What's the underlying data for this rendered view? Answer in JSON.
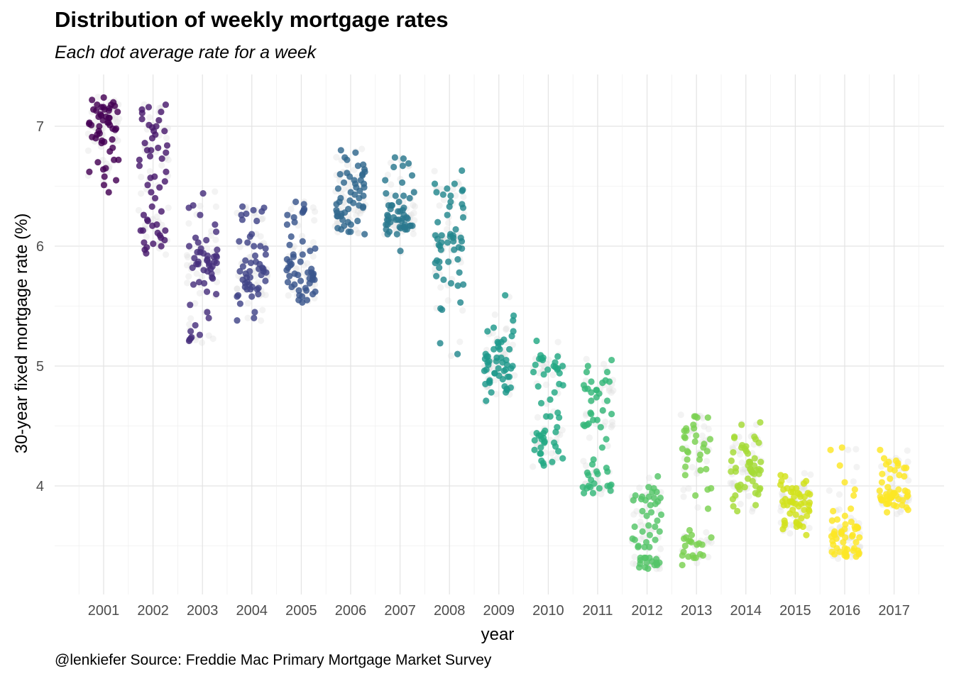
{
  "title": "Distribution of weekly mortgage rates",
  "subtitle": "Each dot average rate for a week",
  "caption": "@lenkiefer Source: Freddie Mac Primary Mortgage Market Survey",
  "chart_data": {
    "type": "scatter",
    "title": "Distribution of weekly mortgage rates",
    "subtitle": "Each dot average rate for a week",
    "xlabel": "year",
    "ylabel": "30-year fixed mortgage rate (%)",
    "categories": [
      "2001",
      "2002",
      "2003",
      "2004",
      "2005",
      "2006",
      "2007",
      "2008",
      "2009",
      "2010",
      "2011",
      "2012",
      "2013",
      "2014",
      "2015",
      "2016",
      "2017"
    ],
    "yticks": [
      4,
      5,
      6,
      7
    ],
    "ylim": [
      3.1,
      7.4
    ],
    "grid": true,
    "legend": "none",
    "color_scale": "viridis",
    "colors": {
      "2001": "#440154",
      "2002": "#481a6c",
      "2003": "#472f7d",
      "2004": "#414487",
      "2005": "#39568c",
      "2006": "#31688e",
      "2007": "#2a788e",
      "2008": "#23888e",
      "2009": "#1f988b",
      "2010": "#22a884",
      "2011": "#35b779",
      "2012": "#54c568",
      "2013": "#7ad151",
      "2014": "#a5db36",
      "2015": "#d2e21b",
      "2016": "#fde725",
      "2017": "#fde725"
    },
    "series": [
      {
        "x": "2001",
        "values": [
          7.03,
          7.07,
          7.01,
          6.96,
          7.08,
          6.89,
          6.91,
          6.94,
          6.98,
          7.16,
          7.14,
          7.24,
          7.18,
          7.17,
          7.14,
          7.22,
          7.15,
          7.13,
          7.09,
          7.03,
          7.03,
          6.93,
          6.82,
          6.72,
          6.62,
          6.51,
          6.64,
          6.87,
          7.02,
          7.1,
          7.18,
          7.16,
          7.13,
          7.07,
          7.01,
          6.98,
          6.9,
          6.86,
          6.79,
          6.72,
          6.7,
          6.58,
          6.45,
          6.55,
          6.65,
          6.88,
          7.0,
          7.08,
          7.12,
          7.2,
          7.05,
          6.97
        ]
      },
      {
        "x": "2002",
        "values": [
          7.0,
          7.06,
          7.12,
          7.16,
          7.18,
          6.96,
          6.86,
          6.84,
          6.8,
          6.96,
          7.05,
          7.11,
          7.14,
          7.01,
          6.93,
          6.8,
          6.78,
          6.75,
          6.72,
          6.62,
          6.57,
          6.54,
          6.49,
          6.33,
          6.22,
          6.18,
          6.13,
          6.11,
          6.09,
          6.05,
          5.97,
          5.94,
          6.0,
          6.03,
          6.07,
          6.13,
          6.17,
          6.21,
          6.26,
          6.29,
          6.4,
          6.45,
          6.51,
          6.58,
          6.67,
          6.73,
          6.82,
          6.9,
          6.99,
          6.02,
          5.99,
          6.13
        ]
      },
      {
        "x": "2003",
        "values": [
          5.95,
          5.91,
          5.86,
          5.83,
          5.79,
          5.85,
          5.87,
          5.92,
          5.97,
          6.0,
          6.05,
          5.81,
          5.84,
          5.73,
          5.62,
          5.51,
          5.45,
          5.34,
          5.29,
          5.23,
          5.21,
          5.26,
          5.68,
          5.88,
          5.9,
          6.07,
          6.26,
          6.32,
          6.44,
          6.34,
          6.18,
          6.12,
          6.03,
          5.98,
          5.94,
          5.91,
          5.87,
          5.8,
          5.77,
          5.74,
          5.7,
          5.69,
          5.6,
          5.4,
          5.24,
          5.22,
          5.82,
          5.85,
          5.92,
          5.95,
          5.86,
          5.89
        ]
      },
      {
        "x": "2004",
        "values": [
          5.85,
          5.79,
          5.74,
          5.66,
          5.64,
          5.59,
          5.58,
          5.52,
          5.4,
          5.38,
          5.45,
          5.64,
          5.74,
          5.81,
          6.04,
          6.08,
          6.32,
          6.33,
          6.3,
          6.27,
          6.22,
          6.29,
          6.26,
          6.21,
          6.0,
          5.92,
          5.88,
          5.82,
          5.79,
          5.77,
          5.72,
          5.7,
          5.69,
          5.68,
          5.66,
          5.65,
          5.64,
          5.6,
          5.58,
          5.76,
          5.86,
          5.93,
          5.98,
          6.0,
          6.03,
          5.87,
          5.83,
          5.71,
          5.79,
          5.81,
          5.78,
          6.1
        ]
      },
      {
        "x": "2005",
        "values": [
          5.77,
          5.73,
          5.68,
          5.63,
          5.59,
          5.58,
          5.55,
          5.65,
          5.69,
          5.76,
          5.81,
          5.93,
          6.04,
          5.98,
          5.91,
          5.84,
          5.78,
          5.77,
          5.72,
          5.71,
          5.62,
          5.55,
          5.72,
          5.74,
          5.76,
          5.87,
          5.93,
          5.96,
          6.01,
          6.08,
          6.18,
          6.24,
          6.28,
          6.3,
          6.37,
          6.35,
          6.31,
          6.29,
          6.26,
          6.2,
          5.8,
          5.82,
          5.85,
          5.87,
          5.89,
          5.78,
          5.7,
          5.66,
          5.63,
          5.6,
          5.53,
          5.75
        ]
      },
      {
        "x": "2006",
        "values": [
          6.21,
          6.15,
          6.12,
          6.12,
          6.25,
          6.28,
          6.32,
          6.35,
          6.38,
          6.43,
          6.49,
          6.53,
          6.58,
          6.6,
          6.62,
          6.67,
          6.72,
          6.78,
          6.8,
          6.74,
          6.68,
          6.6,
          6.55,
          6.52,
          6.49,
          6.46,
          6.42,
          6.4,
          6.37,
          6.33,
          6.3,
          6.25,
          6.2,
          6.17,
          6.14,
          6.18,
          6.22,
          6.28,
          6.31,
          6.34,
          6.36,
          6.4,
          6.45,
          6.48,
          6.52,
          6.55,
          6.59,
          6.61,
          6.64,
          6.27,
          6.25,
          6.1
        ]
      },
      {
        "x": "2007",
        "values": [
          6.22,
          6.25,
          6.23,
          6.29,
          6.34,
          6.32,
          6.16,
          6.18,
          6.14,
          6.17,
          6.16,
          6.22,
          6.18,
          6.21,
          6.16,
          6.17,
          6.15,
          6.23,
          6.37,
          6.42,
          6.53,
          6.69,
          6.74,
          6.73,
          6.67,
          6.66,
          6.59,
          6.55,
          6.44,
          6.4,
          6.34,
          6.3,
          6.31,
          6.26,
          6.22,
          6.17,
          6.14,
          6.1,
          6.1,
          6.12,
          6.14,
          6.18,
          6.24,
          6.26,
          6.34,
          6.42,
          6.45,
          6.29,
          6.22,
          5.96,
          6.2,
          6.24
        ]
      },
      {
        "x": "2008",
        "values": [
          6.07,
          5.87,
          5.69,
          5.48,
          5.68,
          5.72,
          6.24,
          6.03,
          5.87,
          5.88,
          5.98,
          5.99,
          6.06,
          6.03,
          6.01,
          6.08,
          6.09,
          6.32,
          6.42,
          6.45,
          6.48,
          6.52,
          6.63,
          6.52,
          6.47,
          6.43,
          6.37,
          6.35,
          6.33,
          6.2,
          6.1,
          6.04,
          6.07,
          6.09,
          6.04,
          6.26,
          6.46,
          5.97,
          6.0,
          6.14,
          6.09,
          5.97,
          5.53,
          5.47,
          5.19,
          5.1,
          5.89,
          5.75,
          5.82,
          5.86,
          5.78,
          5.67
        ]
      },
      {
        "x": "2009",
        "values": [
          5.01,
          4.96,
          5.1,
          5.16,
          5.25,
          5.14,
          5.07,
          5.04,
          5.03,
          4.98,
          4.89,
          4.85,
          4.78,
          4.8,
          4.81,
          4.82,
          4.86,
          4.91,
          5.29,
          5.42,
          5.38,
          5.32,
          5.29,
          5.2,
          5.22,
          5.14,
          5.08,
          5.07,
          5.04,
          5.0,
          4.96,
          4.94,
          4.97,
          4.87,
          4.78,
          4.71,
          4.83,
          4.88,
          4.91,
          4.94,
          4.97,
          5.06,
          5.14,
          5.2,
          5.59,
          5.19,
          5.08,
          5.03,
          4.92,
          4.98,
          5.01,
          5.05
        ]
      },
      {
        "x": "2010",
        "values": [
          5.09,
          5.06,
          4.99,
          4.98,
          5.01,
          5.03,
          4.97,
          5.05,
          5.06,
          5.08,
          5.21,
          5.07,
          5.0,
          4.93,
          4.84,
          4.78,
          4.72,
          4.69,
          4.58,
          4.57,
          4.49,
          4.44,
          4.42,
          4.36,
          4.33,
          4.27,
          4.21,
          4.19,
          4.23,
          4.17,
          4.2,
          4.27,
          4.39,
          4.4,
          4.46,
          4.61,
          4.83,
          4.85,
          4.94,
          4.95,
          5.0,
          4.97,
          4.58,
          4.45,
          4.32,
          4.29,
          4.36,
          4.37,
          4.44,
          4.42,
          4.38,
          4.3
        ]
      },
      {
        "x": "2011",
        "values": [
          4.77,
          4.74,
          4.8,
          4.81,
          4.95,
          5.05,
          5.0,
          4.87,
          4.95,
          4.88,
          4.86,
          4.87,
          4.81,
          4.8,
          4.71,
          4.63,
          4.61,
          4.6,
          4.55,
          4.51,
          4.5,
          4.49,
          4.55,
          4.6,
          4.52,
          4.39,
          4.32,
          4.22,
          4.15,
          4.12,
          4.09,
          4.01,
          3.98,
          3.94,
          4.0,
          3.99,
          3.94,
          4.1,
          4.11,
          4.12,
          4.0,
          3.98,
          3.96,
          4.0,
          3.99,
          4.02,
          4.05,
          4.18,
          4.51,
          4.71,
          4.78,
          4.84
        ]
      },
      {
        "x": "2012",
        "values": [
          3.91,
          3.89,
          3.88,
          3.87,
          3.98,
          3.95,
          3.9,
          3.92,
          3.99,
          4.08,
          3.9,
          3.88,
          3.84,
          3.79,
          3.75,
          3.78,
          3.71,
          3.67,
          3.66,
          3.62,
          3.56,
          3.49,
          3.53,
          3.55,
          3.49,
          3.5,
          3.59,
          3.66,
          3.62,
          3.55,
          3.49,
          3.4,
          3.36,
          3.37,
          3.38,
          3.4,
          3.35,
          3.34,
          3.31,
          3.32,
          3.34,
          3.39,
          3.4,
          3.36,
          3.32,
          3.4,
          3.35,
          3.36,
          3.91,
          3.85,
          3.76,
          3.95
        ]
      },
      {
        "x": "2013",
        "values": [
          3.34,
          3.4,
          3.42,
          3.41,
          3.42,
          3.5,
          3.51,
          3.53,
          3.56,
          3.54,
          3.57,
          3.63,
          3.52,
          3.57,
          3.54,
          3.4,
          3.42,
          3.43,
          3.45,
          3.51,
          3.59,
          3.81,
          3.98,
          4.29,
          4.31,
          4.37,
          4.46,
          4.51,
          4.4,
          4.39,
          4.58,
          4.57,
          4.48,
          4.42,
          4.32,
          4.28,
          4.22,
          4.13,
          4.16,
          4.26,
          4.35,
          4.46,
          4.57,
          4.41,
          4.29,
          4.22,
          4.14,
          4.09,
          3.97,
          3.92,
          4.48,
          4.58
        ]
      },
      {
        "x": "2014",
        "values": [
          4.53,
          4.51,
          4.41,
          4.39,
          4.32,
          4.28,
          4.23,
          4.17,
          4.12,
          4.13,
          4.2,
          4.27,
          4.4,
          4.41,
          4.34,
          4.33,
          4.29,
          4.21,
          4.2,
          4.14,
          4.12,
          4.14,
          4.17,
          4.19,
          4.15,
          4.13,
          4.11,
          4.12,
          4.1,
          4.14,
          4.12,
          4.1,
          4.0,
          3.98,
          3.92,
          3.97,
          4.06,
          4.01,
          3.99,
          3.97,
          3.94,
          3.89,
          3.83,
          3.79,
          3.84,
          3.93,
          3.99,
          4.0,
          4.04,
          4.2,
          4.31,
          4.36
        ]
      },
      {
        "x": "2015",
        "values": [
          3.87,
          3.73,
          3.66,
          3.59,
          3.66,
          3.69,
          3.8,
          3.86,
          3.75,
          3.77,
          3.67,
          3.69,
          3.7,
          3.67,
          3.68,
          3.8,
          3.84,
          3.85,
          3.87,
          3.84,
          3.87,
          3.98,
          4.02,
          4.04,
          4.08,
          4.09,
          3.98,
          3.91,
          3.94,
          3.91,
          3.84,
          3.93,
          3.89,
          3.86,
          3.83,
          3.91,
          3.86,
          3.85,
          3.8,
          3.79,
          3.76,
          3.87,
          3.94,
          3.98,
          3.95,
          3.97,
          3.95,
          4.01,
          4.04,
          3.71,
          3.64,
          3.93
        ]
      },
      {
        "x": "2016",
        "values": [
          3.97,
          3.92,
          3.81,
          3.79,
          3.65,
          3.62,
          3.68,
          3.71,
          3.64,
          3.59,
          3.58,
          3.66,
          3.61,
          3.64,
          3.59,
          3.6,
          3.57,
          3.48,
          3.45,
          3.41,
          3.42,
          3.43,
          3.44,
          3.45,
          3.44,
          3.48,
          3.47,
          3.46,
          3.44,
          3.48,
          3.53,
          3.56,
          3.57,
          3.66,
          3.7,
          3.75,
          4.03,
          4.17,
          4.3,
          4.32,
          3.65,
          3.62,
          3.54,
          3.51,
          3.53,
          3.43,
          3.42,
          3.41,
          3.46,
          3.58,
          3.6,
          3.72
        ]
      },
      {
        "x": "2017",
        "values": [
          4.2,
          4.09,
          4.19,
          4.17,
          4.1,
          4.15,
          4.21,
          4.23,
          4.3,
          4.14,
          4.08,
          4.03,
          3.97,
          3.91,
          3.89,
          3.95,
          3.9,
          3.89,
          3.96,
          3.91,
          3.88,
          3.84,
          3.91,
          3.94,
          3.93,
          3.91,
          3.88,
          3.8,
          3.83,
          3.86,
          3.78,
          3.82,
          3.85,
          3.88,
          3.9,
          3.94,
          3.99,
          3.92,
          3.9,
          3.96,
          4.06,
          4.13,
          4.18,
          4.15,
          3.95,
          3.92,
          3.88,
          3.84,
          3.93,
          3.85
        ]
      }
    ]
  }
}
